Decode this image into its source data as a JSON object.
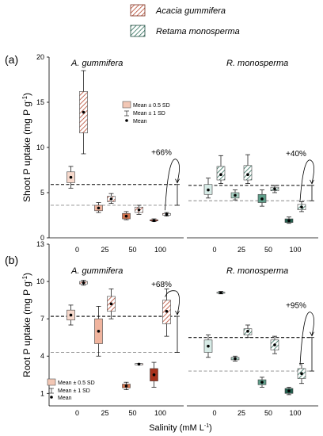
{
  "legend": {
    "species": [
      {
        "name": "Acacia gummifera",
        "color": "#b5462e",
        "hatch": true
      },
      {
        "name": "Retama monosperma",
        "color": "#2e6e5a",
        "hatch": true
      }
    ],
    "box_key": {
      "box": "Mean ± 0.5 SD",
      "whisker": "Mean ± 1 SD",
      "dot": "Mean"
    }
  },
  "x_axis": {
    "label": "Salinity (mM L",
    "label_sup": "-1",
    "label_end": ")",
    "ticks": [
      "0",
      "25",
      "50",
      "100"
    ]
  },
  "palette": {
    "ag": [
      "#f7d9cc",
      "#f0b49e",
      "#d4744e",
      "#a8321c"
    ],
    "rm": [
      "#d7ebe6",
      "#a7cfc3",
      "#5f9e8a",
      "#245f4e"
    ]
  },
  "chart_data": [
    {
      "type": "box",
      "panel_label": "(a)",
      "ylabel": "Shoot P uptake (mg P g",
      "ylabel_sup": "-1",
      "ylabel_end": ")",
      "yticks": [
        0,
        5,
        10,
        15,
        20
      ],
      "ylim": [
        0,
        20
      ],
      "groups": [
        {
          "title": "A. gummifera",
          "boxes": [
            {
              "x": "0",
              "hatch": false,
              "min": 5.5,
              "q1": 6.1,
              "mean": 6.7,
              "q3": 7.3,
              "max": 7.9,
              "shade": 0
            },
            {
              "x": "0",
              "hatch": true,
              "min": 9.3,
              "q1": 11.6,
              "mean": 13.9,
              "q3": 16.2,
              "max": 18.5,
              "shade": 0
            },
            {
              "x": "25",
              "hatch": false,
              "min": 2.8,
              "q1": 3.0,
              "mean": 3.3,
              "q3": 3.6,
              "max": 3.9,
              "shade": 1
            },
            {
              "x": "25",
              "hatch": true,
              "min": 3.8,
              "q1": 4.0,
              "mean": 4.3,
              "q3": 4.6,
              "max": 4.9,
              "shade": 1
            },
            {
              "x": "50",
              "hatch": false,
              "min": 2.0,
              "q1": 2.1,
              "mean": 2.4,
              "q3": 2.7,
              "max": 2.9,
              "shade": 2
            },
            {
              "x": "50",
              "hatch": true,
              "min": 2.6,
              "q1": 2.8,
              "mean": 3.1,
              "q3": 3.4,
              "max": 3.6,
              "shade": 2
            },
            {
              "x": "100",
              "hatch": false,
              "min": 1.8,
              "q1": 1.9,
              "mean": 1.9,
              "q3": 2.0,
              "max": 2.1,
              "shade": 3
            },
            {
              "x": "100",
              "hatch": true,
              "min": 2.4,
              "q1": 2.5,
              "mean": 2.6,
              "q3": 2.7,
              "max": 2.8,
              "shade": 3
            }
          ],
          "dashed_upper": 5.9,
          "dashed_lower": 3.6,
          "change_label": "+66%"
        },
        {
          "title": "R. monosperma",
          "boxes": [
            {
              "x": "0",
              "hatch": false,
              "min": 4.4,
              "q1": 4.8,
              "mean": 5.3,
              "q3": 5.9,
              "max": 6.6,
              "shade": 0
            },
            {
              "x": "0",
              "hatch": true,
              "min": 6.0,
              "q1": 6.4,
              "mean": 7.0,
              "q3": 7.9,
              "max": 9.1,
              "shade": 0
            },
            {
              "x": "25",
              "hatch": false,
              "min": 4.2,
              "q1": 4.4,
              "mean": 4.7,
              "q3": 5.0,
              "max": 5.3,
              "shade": 1
            },
            {
              "x": "25",
              "hatch": true,
              "min": 6.0,
              "q1": 6.4,
              "mean": 7.0,
              "q3": 8.0,
              "max": 9.2,
              "shade": 1
            },
            {
              "x": "50",
              "hatch": false,
              "min": 3.5,
              "q1": 3.9,
              "mean": 4.3,
              "q3": 4.8,
              "max": 5.3,
              "shade": 2
            },
            {
              "x": "50",
              "hatch": true,
              "min": 5.0,
              "q1": 5.2,
              "mean": 5.4,
              "q3": 5.6,
              "max": 5.8,
              "shade": 2
            },
            {
              "x": "100",
              "hatch": false,
              "min": 1.6,
              "q1": 1.7,
              "mean": 1.9,
              "q3": 2.1,
              "max": 2.3,
              "shade": 3
            },
            {
              "x": "100",
              "hatch": true,
              "min": 2.9,
              "q1": 3.1,
              "mean": 3.4,
              "q3": 3.7,
              "max": 4.0,
              "shade": 3
            }
          ],
          "dashed_upper": 5.8,
          "dashed_lower": 4.1,
          "change_label": "+40%"
        }
      ]
    },
    {
      "type": "box",
      "panel_label": "(b)",
      "ylabel": "Root P uptake (mg P g",
      "ylabel_sup": "-1",
      "ylabel_end": ")",
      "yticks": [
        1,
        4,
        7,
        10,
        13
      ],
      "ylim": [
        0,
        13
      ],
      "groups": [
        {
          "title": "A. gummifera",
          "boxes": [
            {
              "x": "0",
              "hatch": false,
              "min": 6.5,
              "q1": 6.9,
              "mean": 7.3,
              "q3": 7.7,
              "max": 8.1,
              "shade": 0
            },
            {
              "x": "0",
              "hatch": true,
              "min": 9.7,
              "q1": 9.8,
              "mean": 9.9,
              "q3": 10.0,
              "max": 10.1,
              "shade": 0
            },
            {
              "x": "25",
              "hatch": false,
              "min": 4.0,
              "q1": 5.0,
              "mean": 6.0,
              "q3": 7.0,
              "max": 8.0,
              "shade": 1
            },
            {
              "x": "25",
              "hatch": true,
              "min": 7.0,
              "q1": 7.6,
              "mean": 8.2,
              "q3": 8.8,
              "max": 9.4,
              "shade": 1
            },
            {
              "x": "50",
              "hatch": false,
              "min": 1.3,
              "q1": 1.45,
              "mean": 1.6,
              "q3": 1.75,
              "max": 1.9,
              "shade": 2
            },
            {
              "x": "50",
              "hatch": true,
              "min": 3.3,
              "q1": 3.3,
              "mean": 3.35,
              "q3": 3.4,
              "max": 3.4,
              "shade": 2
            },
            {
              "x": "100",
              "hatch": false,
              "min": 1.5,
              "q1": 2.0,
              "mean": 2.5,
              "q3": 3.0,
              "max": 3.5,
              "shade": 3
            },
            {
              "x": "100",
              "hatch": true,
              "min": 5.6,
              "q1": 6.6,
              "mean": 7.6,
              "q3": 8.5,
              "max": 9.4,
              "shade": 3
            }
          ],
          "dashed_upper": 7.2,
          "dashed_lower": 4.3,
          "change_label": "+68%"
        },
        {
          "title": "R. monosperma",
          "boxes": [
            {
              "x": "0",
              "hatch": false,
              "min": 3.9,
              "q1": 4.3,
              "mean": 4.8,
              "q3": 5.3,
              "max": 5.7,
              "shade": 0
            },
            {
              "x": "0",
              "hatch": true,
              "min": 9.0,
              "q1": 9.05,
              "mean": 9.1,
              "q3": 9.15,
              "max": 9.2,
              "shade": 0
            },
            {
              "x": "25",
              "hatch": false,
              "min": 3.6,
              "q1": 3.7,
              "mean": 3.8,
              "q3": 3.9,
              "max": 4.0,
              "shade": 1
            },
            {
              "x": "25",
              "hatch": true,
              "min": 5.5,
              "q1": 5.7,
              "mean": 6.0,
              "q3": 6.2,
              "max": 6.5,
              "shade": 1
            },
            {
              "x": "50",
              "hatch": false,
              "min": 1.5,
              "q1": 1.7,
              "mean": 1.9,
              "q3": 2.1,
              "max": 2.3,
              "shade": 2
            },
            {
              "x": "50",
              "hatch": true,
              "min": 4.2,
              "q1": 4.5,
              "mean": 4.9,
              "q3": 5.3,
              "max": 5.6,
              "shade": 2
            },
            {
              "x": "100",
              "hatch": false,
              "min": 0.9,
              "q1": 1.0,
              "mean": 1.2,
              "q3": 1.4,
              "max": 1.5,
              "shade": 3
            },
            {
              "x": "100",
              "hatch": true,
              "min": 1.8,
              "q1": 2.2,
              "mean": 2.6,
              "q3": 3.0,
              "max": 3.4,
              "shade": 3
            }
          ],
          "dashed_upper": 5.5,
          "dashed_lower": 2.8,
          "change_label": "+95%"
        }
      ]
    }
  ]
}
